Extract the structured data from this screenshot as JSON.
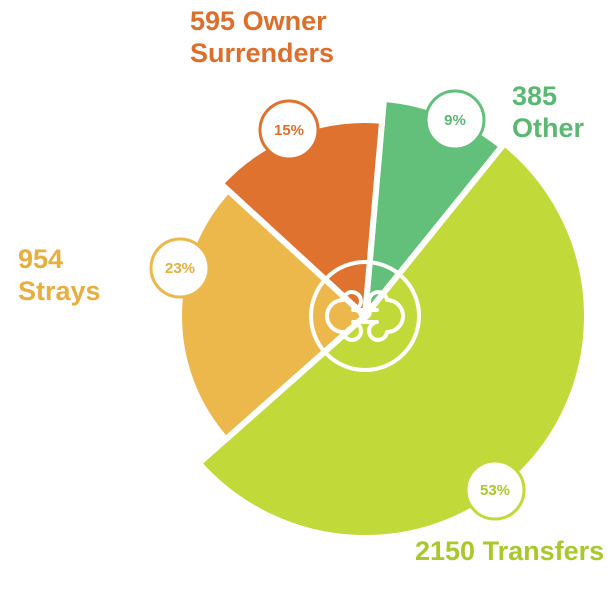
{
  "chart_data": {
    "type": "pie",
    "categories": [
      "Other",
      "Transfers",
      "Strays",
      "Owner Surrenders"
    ],
    "values": [
      385,
      2150,
      954,
      595
    ],
    "percents": [
      9,
      53,
      23,
      15
    ],
    "percent_labels": [
      "9%",
      "53%",
      "23%",
      "15%"
    ],
    "colors": [
      "#62c07a",
      "#c2d93a",
      "#edb84b",
      "#e0722f"
    ],
    "label_colors": [
      "#5bb873",
      "#aac72c",
      "#e8ae3f",
      "#dd6e2b"
    ]
  }
}
